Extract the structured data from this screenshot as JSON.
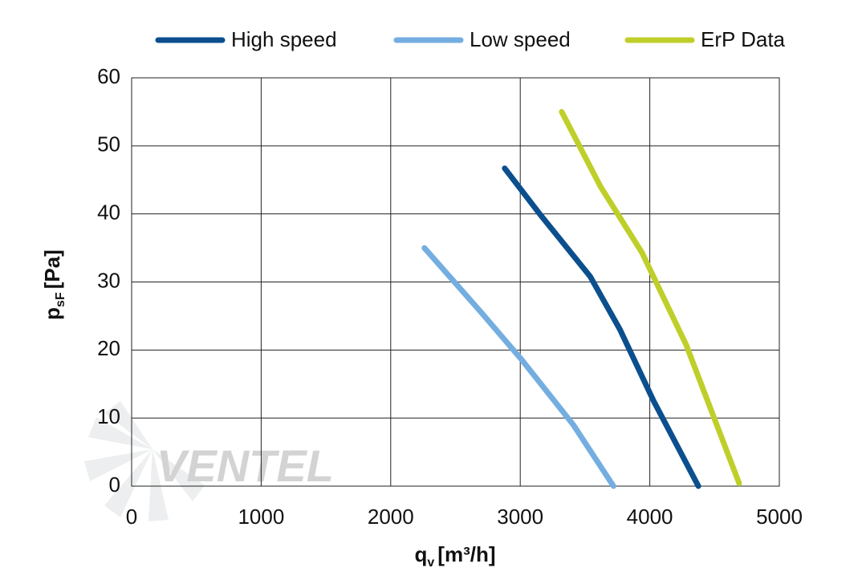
{
  "chart_data": {
    "type": "line",
    "xlabel": "q",
    "xlabel_sub": "v",
    "xlabel_unit": "[m³/h]",
    "ylabel": "p",
    "ylabel_sub": "sF",
    "ylabel_unit": "[Pa]",
    "xlim": [
      0,
      5000
    ],
    "xticks": [
      0,
      1000,
      2000,
      3000,
      4000,
      5000
    ],
    "ylim": [
      0,
      60
    ],
    "yticks": [
      0,
      10,
      20,
      30,
      40,
      50,
      60
    ],
    "grid": true,
    "legend": "top",
    "watermark": "VENTEL",
    "series": [
      {
        "name": "High speed",
        "color": "#0b4f8e",
        "x": [
          2880,
          3150,
          3540,
          3770,
          4030,
          4375
        ],
        "values": [
          46.7,
          40,
          30.8,
          23,
          12.5,
          0
        ]
      },
      {
        "name": "Low speed",
        "color": "#74aee0",
        "x": [
          2260,
          2700,
          3010,
          3410,
          3720
        ],
        "values": [
          35,
          25.5,
          18.6,
          9,
          0
        ]
      },
      {
        "name": "ErP Data",
        "color": "#bfcf2a",
        "x": [
          3320,
          3620,
          3940,
          4280,
          4690
        ],
        "values": [
          55,
          44,
          34.3,
          20.8,
          0.4
        ]
      }
    ]
  }
}
